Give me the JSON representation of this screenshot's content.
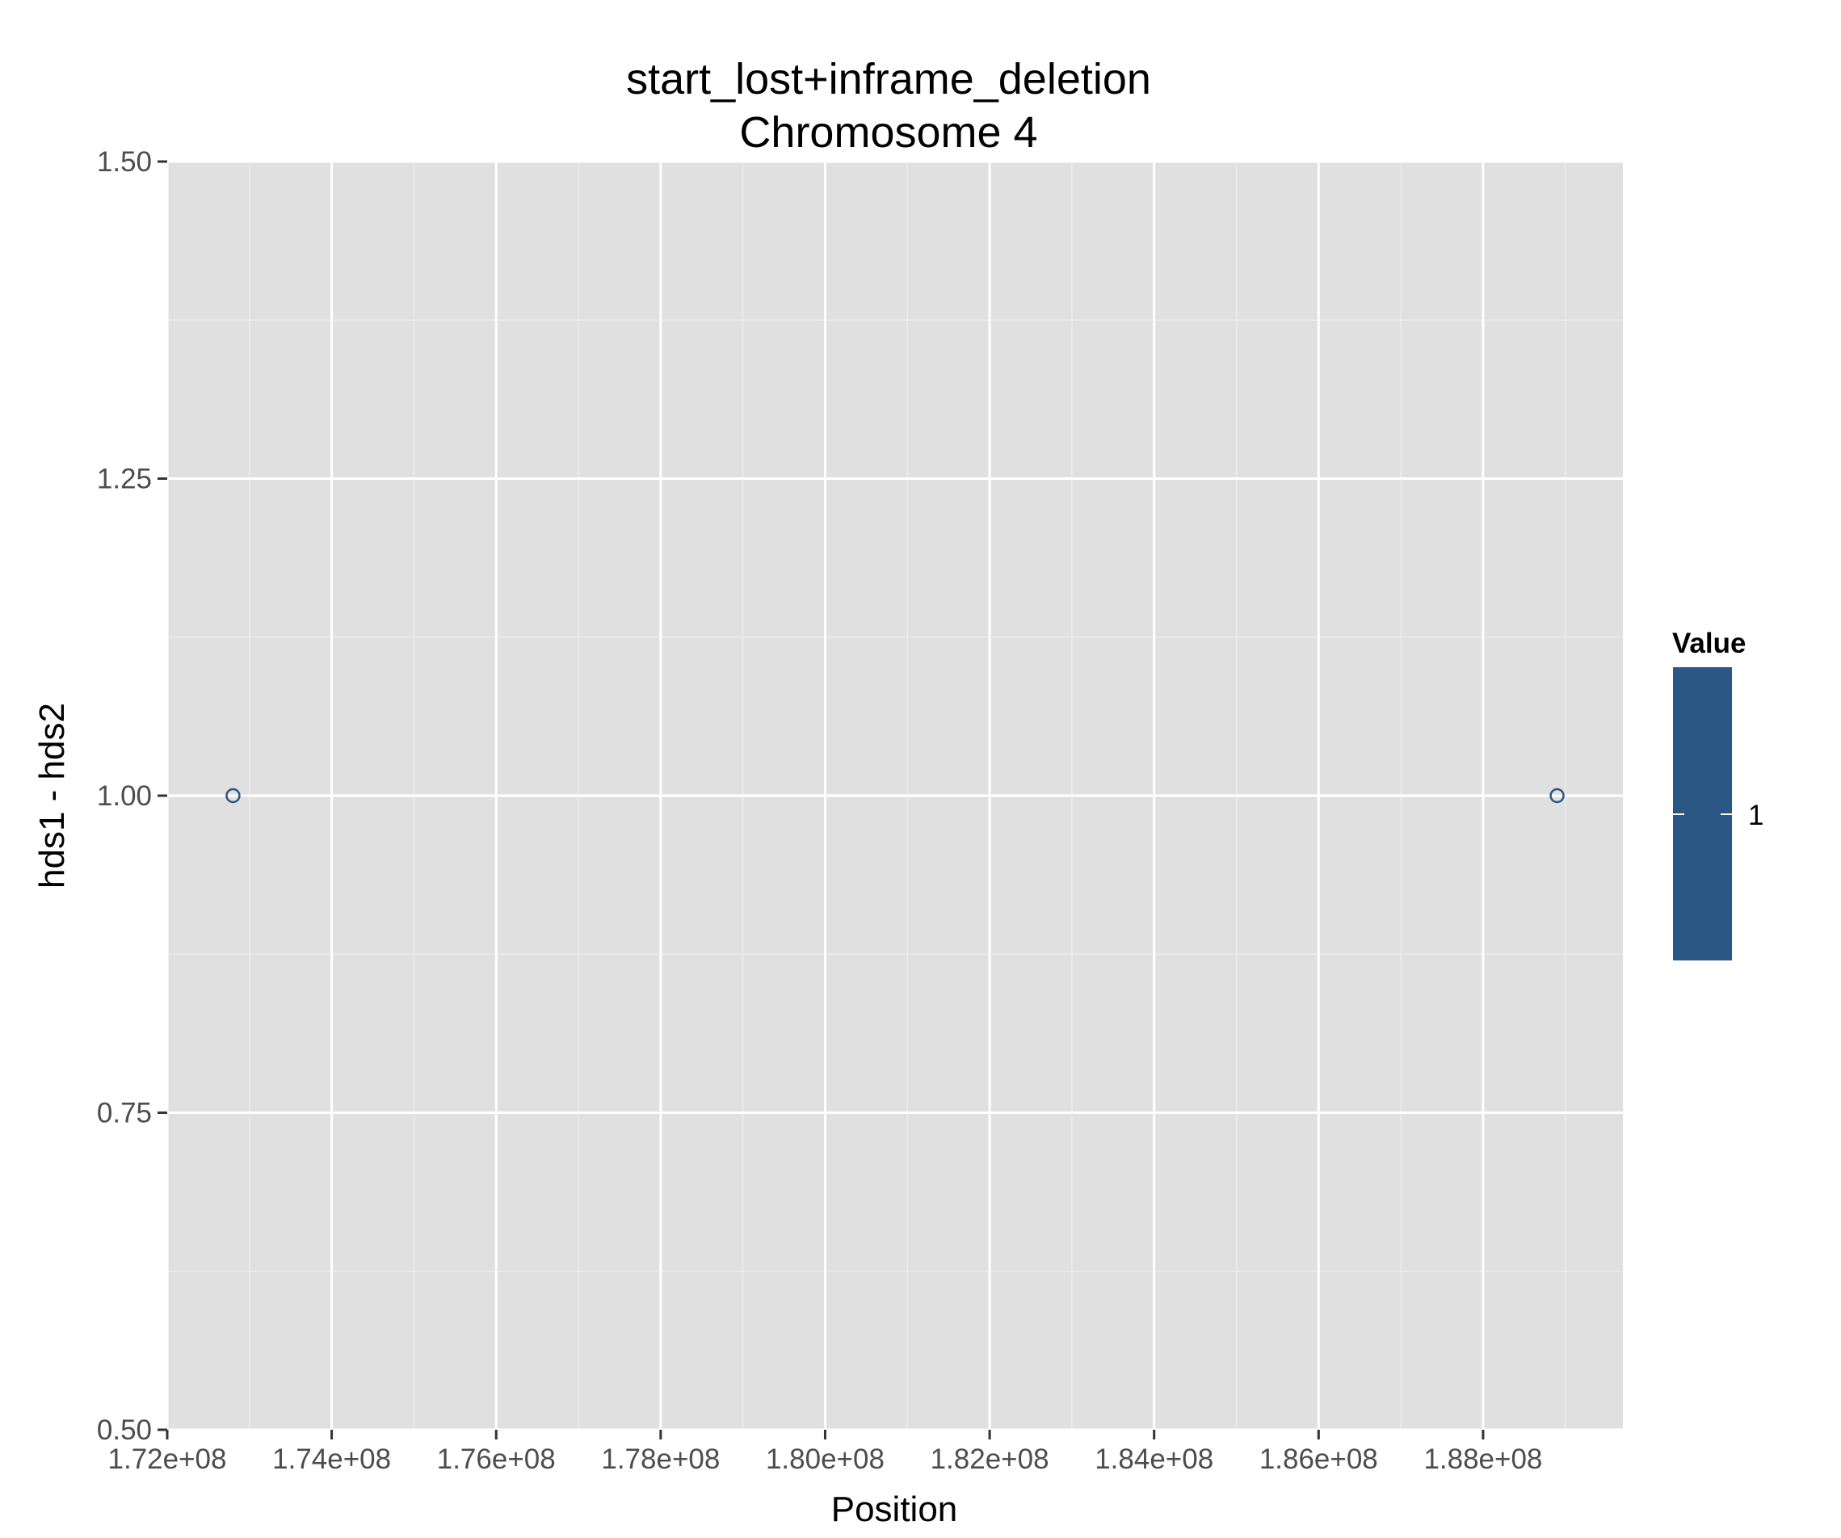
{
  "chart_data": {
    "type": "scatter",
    "title": [
      "start_lost+inframe_deletion",
      "Chromosome 4"
    ],
    "xlabel": "Position",
    "ylabel": "hds1 - hds2",
    "xlim": [
      172000000,
      189700000
    ],
    "ylim": [
      0.5,
      1.5
    ],
    "x_ticks": [
      172000000,
      174000000,
      176000000,
      178000000,
      180000000,
      182000000,
      184000000,
      186000000,
      188000000
    ],
    "x_tick_labels": [
      "1.72e+08",
      "1.74e+08",
      "1.76e+08",
      "1.78e+08",
      "1.80e+08",
      "1.82e+08",
      "1.84e+08",
      "1.86e+08",
      "1.88e+08"
    ],
    "y_ticks": [
      0.5,
      0.75,
      1.0,
      1.25,
      1.5
    ],
    "y_tick_labels": [
      "0.50",
      "0.75",
      "1.00",
      "1.25",
      "1.50"
    ],
    "grid": true,
    "points": [
      {
        "x": 172800000,
        "y": 1.0,
        "value": 1
      },
      {
        "x": 188900000,
        "y": 1.0,
        "value": 1
      }
    ],
    "legend": {
      "title": "Value",
      "placement": "right",
      "labels": [
        "1"
      ],
      "color": "#2a5783"
    },
    "colors": {
      "panel_background": "#e0e0e0",
      "grid_major": "#ffffff",
      "grid_minor": "#ececec",
      "point": "#2a5783",
      "tick_text": "#4d4d4d"
    }
  }
}
